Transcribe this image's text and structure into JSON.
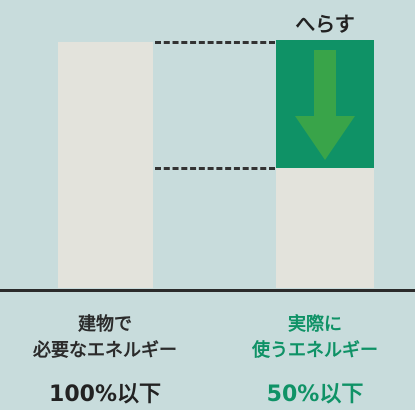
{
  "colors": {
    "background": "#c8dcdc",
    "bar_neutral": "#e3e3dc",
    "accent_green": "#0f9266",
    "arrow_green": "#3ea646",
    "text_dark": "#222222"
  },
  "reduce_label": "へらす",
  "left": {
    "caption_line1": "建物で",
    "caption_line2": "必要なエネルギー",
    "value": "100%以下"
  },
  "right": {
    "caption_line1": "実際に",
    "caption_line2": "使うエネルギー",
    "value": "50%以下"
  },
  "icons": {
    "reduction": "down-arrow-icon"
  }
}
